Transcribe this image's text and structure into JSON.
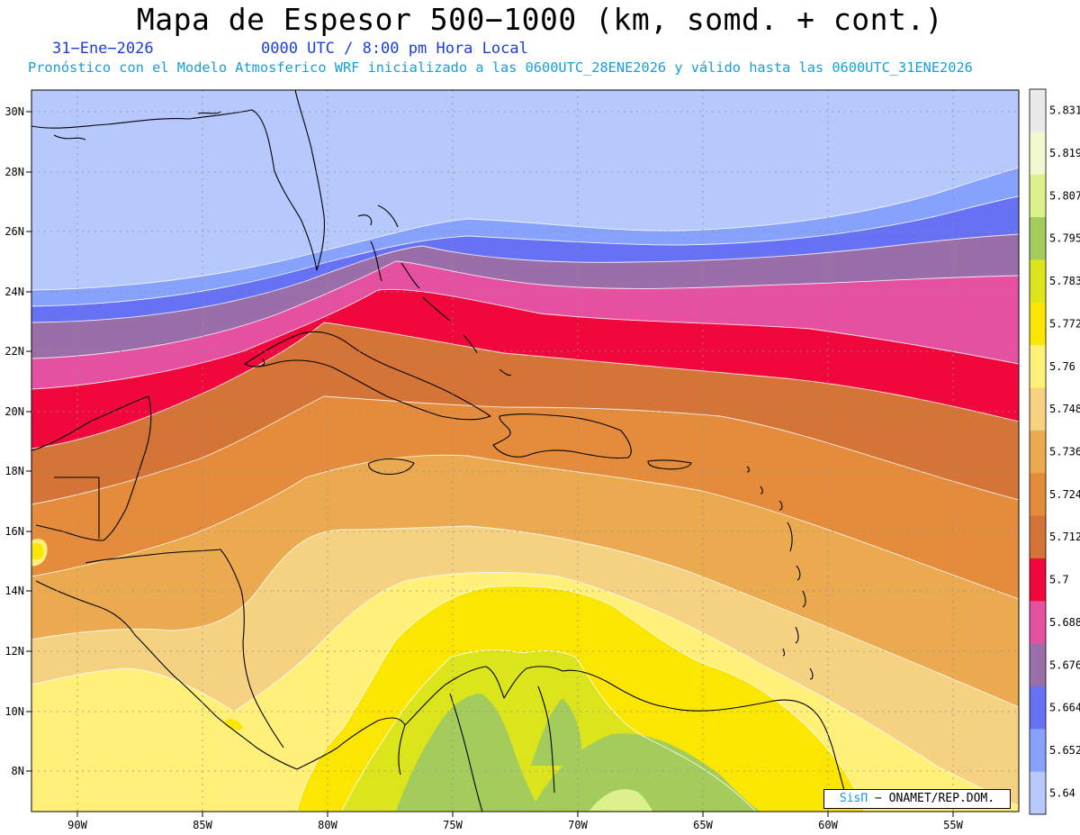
{
  "header": {
    "title": "Mapa de Espesor 500−1000 (km, somd. + cont.)",
    "date": "31−Ene−2026",
    "time": "0000 UTC / 8:00 pm Hora Local",
    "forecast_info": "Pronóstico con el Modelo Atmosferico WRF inicializado a las 0600UTC_28ENE2026 y válido hasta las  0600UTC_31ENE2026"
  },
  "axes": {
    "lat_labels": [
      "30N",
      "28N",
      "26N",
      "24N",
      "22N",
      "20N",
      "18N",
      "16N",
      "14N",
      "12N",
      "10N",
      "8N"
    ],
    "lon_labels": [
      "90W",
      "85W",
      "80W",
      "75W",
      "70W",
      "65W",
      "60W",
      "55W"
    ]
  },
  "legend": {
    "levels": [
      "5.831",
      "5.819",
      "5.807",
      "5.795",
      "5.783",
      "5.772",
      "5.76",
      "5.748",
      "5.736",
      "5.724",
      "5.712",
      "5.7",
      "5.688",
      "5.676",
      "5.664",
      "5.652",
      "5.64"
    ],
    "colors": [
      "#e9e9e9",
      "#f2f8d0",
      "#dcf08c",
      "#a4cc5c",
      "#dce41c",
      "#fae600",
      "#fff07a",
      "#f4d282",
      "#ecaa50",
      "#e48c3c",
      "#d47436",
      "#f0073c",
      "#e650a0",
      "#9a6ea8",
      "#6671f4",
      "#87a2fc",
      "#b6c8fc"
    ]
  },
  "credit": {
    "sis": "SisΠ",
    "org": "− ONAMET/REP.DOM."
  }
}
